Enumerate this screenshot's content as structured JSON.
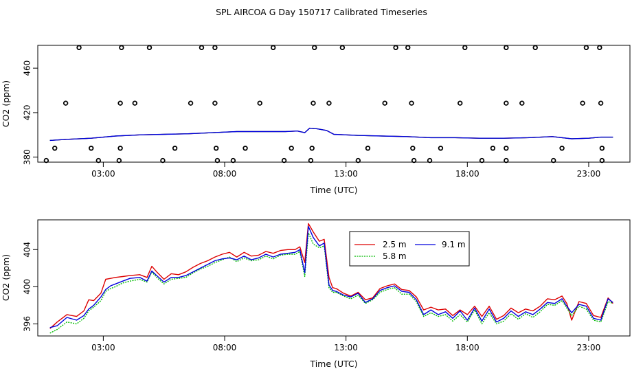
{
  "title": "SPL AIRCOA G  Day 150717  Calibrated Timeseries",
  "colors": {
    "red": "#dd0000",
    "green": "#00bb00",
    "blue": "#0000dd",
    "axis": "#000000"
  },
  "chart_data": [
    {
      "type": "scatter",
      "xlabel": "Time (UTC)",
      "ylabel": "CO2 (ppm)",
      "x_ticks": [
        "03:00",
        "08:00",
        "13:00",
        "18:00",
        "23:00"
      ],
      "x_tick_hours": [
        3,
        8,
        13,
        18,
        23
      ],
      "y_ticks": [
        "380",
        "420",
        "460"
      ],
      "y_tick_values": [
        380,
        420,
        460
      ],
      "xlim_hours": [
        0.3,
        24.7
      ],
      "ylim": [
        375.5,
        480.5
      ],
      "legend": "none",
      "grid": false,
      "outlier_series": [
        {
          "level": 478.5,
          "x": [
            2.0,
            3.75,
            4.9,
            7.05,
            7.6,
            10.0,
            11.7,
            12.85,
            15.05,
            15.55,
            17.9,
            19.6,
            20.8,
            22.9,
            23.45
          ]
        },
        {
          "level": 428.5,
          "x": [
            1.45,
            3.7,
            4.3,
            6.6,
            7.6,
            9.45,
            11.65,
            12.3,
            14.6,
            15.7,
            17.7,
            19.6,
            20.25,
            22.75,
            23.5
          ]
        },
        {
          "level": 388.0,
          "x": [
            1.0,
            2.5,
            3.7,
            5.95,
            7.65,
            8.85,
            10.75,
            11.6,
            13.9,
            15.75,
            16.9,
            19.05,
            19.6,
            21.9,
            23.55
          ]
        },
        {
          "level": 377.0,
          "x": [
            0.65,
            2.8,
            3.65,
            5.45,
            7.7,
            8.35,
            10.45,
            11.55,
            13.5,
            15.8,
            16.45,
            18.6,
            19.6,
            21.55,
            23.55
          ]
        }
      ],
      "series_line": {
        "x": [
          0.8,
          1.5,
          2.5,
          3.5,
          4.5,
          5.5,
          6.5,
          7.5,
          8.5,
          9.5,
          10.5,
          11.0,
          11.3,
          11.5,
          11.8,
          12.2,
          12.5,
          13.5,
          14.5,
          15.5,
          16.5,
          17.5,
          18.5,
          19.5,
          20.5,
          21.5,
          22.3,
          23.0,
          23.5,
          24.0
        ],
        "y": [
          395.0,
          396.0,
          397.0,
          399.0,
          400.0,
          400.5,
          401.0,
          402.0,
          403.0,
          403.0,
          403.0,
          403.5,
          402.0,
          406.0,
          405.5,
          404.0,
          400.5,
          399.5,
          399.0,
          398.5,
          397.5,
          397.5,
          397.0,
          397.0,
          397.5,
          398.5,
          396.5,
          397.0,
          398.0,
          398.0
        ]
      }
    },
    {
      "type": "line",
      "xlabel": "Time (UTC)",
      "ylabel": "CO2 (ppm)",
      "x_ticks": [
        "03:00",
        "08:00",
        "13:00",
        "18:00",
        "23:00"
      ],
      "x_tick_hours": [
        3,
        8,
        13,
        18,
        23
      ],
      "y_ticks": [
        "396",
        "400",
        "404"
      ],
      "y_tick_values": [
        396,
        400,
        404
      ],
      "xlim_hours": [
        0.3,
        24.7
      ],
      "ylim": [
        394.7,
        407.2
      ],
      "legend": "top-center",
      "grid": false,
      "series": [
        {
          "name": "2.5 m",
          "color": "#dd0000",
          "x": [
            0.8,
            1.1,
            1.5,
            1.9,
            2.2,
            2.4,
            2.6,
            2.9,
            3.1,
            3.3,
            3.5,
            3.8,
            4.1,
            4.5,
            4.8,
            5.0,
            5.2,
            5.5,
            5.8,
            6.1,
            6.4,
            6.7,
            7.0,
            7.3,
            7.6,
            7.9,
            8.2,
            8.5,
            8.8,
            9.1,
            9.4,
            9.7,
            10.0,
            10.3,
            10.6,
            10.9,
            11.1,
            11.3,
            11.45,
            11.65,
            11.9,
            12.1,
            12.3,
            12.45,
            12.6,
            12.9,
            13.2,
            13.5,
            13.8,
            14.1,
            14.4,
            14.7,
            15.0,
            15.3,
            15.6,
            15.9,
            16.2,
            16.5,
            16.8,
            17.1,
            17.4,
            17.7,
            18.0,
            18.3,
            18.6,
            18.9,
            19.2,
            19.5,
            19.8,
            20.1,
            20.4,
            20.7,
            21.0,
            21.3,
            21.6,
            21.9,
            22.1,
            22.3,
            22.6,
            22.9,
            23.2,
            23.5,
            23.8,
            24.0
          ],
          "y": [
            395.5,
            396.2,
            397.0,
            396.8,
            397.4,
            398.6,
            398.5,
            399.3,
            400.8,
            400.9,
            401.0,
            401.1,
            401.2,
            401.3,
            401.0,
            402.2,
            401.6,
            400.8,
            401.4,
            401.3,
            401.6,
            402.1,
            402.5,
            402.8,
            403.2,
            403.5,
            403.7,
            403.2,
            403.7,
            403.3,
            403.4,
            403.8,
            403.6,
            403.9,
            404.0,
            404.0,
            404.3,
            402.6,
            406.8,
            405.9,
            404.9,
            405.1,
            401.0,
            399.9,
            399.8,
            399.3,
            399.0,
            399.4,
            398.6,
            398.8,
            399.8,
            400.1,
            400.3,
            399.7,
            399.6,
            398.9,
            397.5,
            397.8,
            397.5,
            397.6,
            396.9,
            397.5,
            397.0,
            397.9,
            396.8,
            397.9,
            396.5,
            396.9,
            397.7,
            397.2,
            397.6,
            397.4,
            397.9,
            398.7,
            398.6,
            399.0,
            398.2,
            396.4,
            398.4,
            398.2,
            396.9,
            396.7,
            398.8,
            398.2
          ]
        },
        {
          "name": "5.8 m",
          "color": "#00bb00",
          "x": [
            0.8,
            1.1,
            1.5,
            1.9,
            2.2,
            2.4,
            2.6,
            2.9,
            3.1,
            3.3,
            3.5,
            3.8,
            4.1,
            4.5,
            4.8,
            5.0,
            5.2,
            5.5,
            5.8,
            6.1,
            6.4,
            6.7,
            7.0,
            7.3,
            7.6,
            7.9,
            8.2,
            8.5,
            8.8,
            9.1,
            9.4,
            9.7,
            10.0,
            10.3,
            10.6,
            10.9,
            11.1,
            11.3,
            11.45,
            11.65,
            11.9,
            12.1,
            12.3,
            12.45,
            12.6,
            12.9,
            13.2,
            13.5,
            13.8,
            14.1,
            14.4,
            14.7,
            15.0,
            15.3,
            15.6,
            15.9,
            16.2,
            16.5,
            16.8,
            17.1,
            17.4,
            17.7,
            18.0,
            18.3,
            18.6,
            18.9,
            19.2,
            19.5,
            19.8,
            20.1,
            20.4,
            20.7,
            21.0,
            21.3,
            21.6,
            21.9,
            22.1,
            22.3,
            22.6,
            22.9,
            23.2,
            23.5,
            23.8,
            24.0
          ],
          "y": [
            395.0,
            395.4,
            396.2,
            396.0,
            396.6,
            397.4,
            397.8,
            398.5,
            399.5,
            399.8,
            400.0,
            400.4,
            400.6,
            400.8,
            400.5,
            401.6,
            401.0,
            400.3,
            400.8,
            400.9,
            401.0,
            401.5,
            401.9,
            402.2,
            402.6,
            402.9,
            403.2,
            402.7,
            403.1,
            402.8,
            402.9,
            403.3,
            403.0,
            403.4,
            403.5,
            403.5,
            403.8,
            401.1,
            405.8,
            404.6,
            404.2,
            404.4,
            399.9,
            399.4,
            399.4,
            399.0,
            398.7,
            399.1,
            398.2,
            398.6,
            399.4,
            399.7,
            399.9,
            399.2,
            399.2,
            398.4,
            396.8,
            397.2,
            396.8,
            397.0,
            396.3,
            397.0,
            396.2,
            397.5,
            396.0,
            397.2,
            396.0,
            396.3,
            397.1,
            396.5,
            397.1,
            396.7,
            397.3,
            398.1,
            398.0,
            398.5,
            397.7,
            396.9,
            397.9,
            397.6,
            396.4,
            396.2,
            398.4,
            398.2
          ]
        },
        {
          "name": "9.1 m",
          "color": "#0000dd",
          "x": [
            0.8,
            1.1,
            1.5,
            1.9,
            2.2,
            2.4,
            2.6,
            2.9,
            3.1,
            3.3,
            3.5,
            3.8,
            4.1,
            4.5,
            4.8,
            5.0,
            5.2,
            5.5,
            5.8,
            6.1,
            6.4,
            6.7,
            7.0,
            7.3,
            7.6,
            7.9,
            8.2,
            8.5,
            8.8,
            9.1,
            9.4,
            9.7,
            10.0,
            10.3,
            10.6,
            10.9,
            11.1,
            11.3,
            11.45,
            11.65,
            11.9,
            12.1,
            12.3,
            12.45,
            12.6,
            12.9,
            13.2,
            13.5,
            13.8,
            14.1,
            14.4,
            14.7,
            15.0,
            15.3,
            15.6,
            15.9,
            16.2,
            16.5,
            16.8,
            17.1,
            17.4,
            17.7,
            18.0,
            18.3,
            18.6,
            18.9,
            19.2,
            19.5,
            19.8,
            20.1,
            20.4,
            20.7,
            21.0,
            21.3,
            21.6,
            21.9,
            22.1,
            22.3,
            22.6,
            22.9,
            23.2,
            23.5,
            23.8,
            24.0
          ],
          "y": [
            395.6,
            395.8,
            396.7,
            396.4,
            396.9,
            397.6,
            398.0,
            398.9,
            399.7,
            400.1,
            400.3,
            400.6,
            400.9,
            401.0,
            400.6,
            401.7,
            401.2,
            400.5,
            401.0,
            401.0,
            401.2,
            401.6,
            402.0,
            402.4,
            402.8,
            403.0,
            403.1,
            402.9,
            403.3,
            402.9,
            403.1,
            403.5,
            403.2,
            403.5,
            403.6,
            403.7,
            404.0,
            401.5,
            406.5,
            405.3,
            404.4,
            404.7,
            400.2,
            399.6,
            399.5,
            399.1,
            398.9,
            399.3,
            398.3,
            398.7,
            399.6,
            399.9,
            400.1,
            399.5,
            399.4,
            398.6,
            397.0,
            397.5,
            397.0,
            397.3,
            396.6,
            397.4,
            396.4,
            397.7,
            396.3,
            397.6,
            396.2,
            396.6,
            397.4,
            396.8,
            397.3,
            397.0,
            397.6,
            398.3,
            398.2,
            398.7,
            397.9,
            397.2,
            398.1,
            397.9,
            396.6,
            396.4,
            398.7,
            398.3
          ]
        }
      ]
    }
  ]
}
